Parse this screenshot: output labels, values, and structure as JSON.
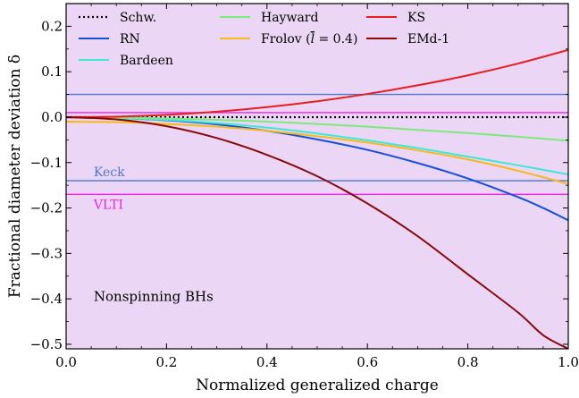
{
  "chart_data": {
    "type": "line",
    "xlabel": "Normalized generalized charge",
    "ylabel": "Fractional diameter deviation δ",
    "xlim": [
      0.0,
      1.0
    ],
    "ylim": [
      -0.51,
      0.25
    ],
    "xticks": [
      0.0,
      0.2,
      0.4,
      0.6,
      0.8,
      1.0
    ],
    "xtick_labels": [
      "0.0",
      "0.2",
      "0.4",
      "0.6",
      "0.8",
      "1.0"
    ],
    "yticks": [
      0.2,
      0.1,
      0.0,
      -0.1,
      -0.2,
      -0.3,
      -0.4,
      -0.5
    ],
    "ytick_labels": [
      "0.2",
      "0.1",
      "0.0",
      "−0.1",
      "−0.2",
      "−0.3",
      "−0.4",
      "−0.5"
    ],
    "grid": false,
    "legend_position": "top",
    "background_color": "#ecd6f6",
    "annotation": "Nonspinning BHs",
    "series": [
      {
        "name": "Schw.",
        "color": "#000000",
        "dash": "dotted",
        "x": [
          0.0,
          1.0
        ],
        "y": [
          0.0,
          0.0
        ]
      },
      {
        "name": "RN",
        "color": "#1550d9",
        "x": [
          0.0,
          0.1,
          0.2,
          0.3,
          0.4,
          0.5,
          0.6,
          0.7,
          0.8,
          0.9,
          0.95,
          1.0
        ],
        "y": [
          0.0,
          -0.002,
          -0.007,
          -0.016,
          -0.03,
          -0.049,
          -0.072,
          -0.101,
          -0.135,
          -0.176,
          -0.2,
          -0.227
        ]
      },
      {
        "name": "Bardeen",
        "color": "#3de8d4",
        "x": [
          0.0,
          0.1,
          0.2,
          0.3,
          0.4,
          0.5,
          0.6,
          0.7,
          0.8,
          0.9,
          1.0
        ],
        "y": [
          0.0,
          -0.002,
          -0.006,
          -0.013,
          -0.023,
          -0.036,
          -0.051,
          -0.068,
          -0.087,
          -0.106,
          -0.126
        ]
      },
      {
        "name": "Hayward",
        "color": "#7cea7a",
        "x": [
          0.0,
          0.1,
          0.2,
          0.3,
          0.4,
          0.5,
          0.6,
          0.7,
          0.8,
          0.9,
          1.0
        ],
        "y": [
          0.0,
          -0.001,
          -0.003,
          -0.006,
          -0.01,
          -0.015,
          -0.021,
          -0.028,
          -0.035,
          -0.043,
          -0.052
        ]
      },
      {
        "name": "Frolov ($\\bar{l}=0.4$)",
        "legend_parts": [
          "Frolov (",
          "l",
          " = 0.4)"
        ],
        "color": "#f5b919",
        "x": [
          0.0,
          0.1,
          0.2,
          0.3,
          0.4,
          0.5,
          0.6,
          0.7,
          0.8,
          0.9,
          1.0
        ],
        "y": [
          -0.01,
          -0.011,
          -0.015,
          -0.021,
          -0.03,
          -0.042,
          -0.056,
          -0.073,
          -0.093,
          -0.118,
          -0.147
        ]
      },
      {
        "name": "KS",
        "color": "#e81e1e",
        "x": [
          0.0,
          0.1,
          0.2,
          0.3,
          0.4,
          0.5,
          0.6,
          0.7,
          0.8,
          0.9,
          1.0
        ],
        "y": [
          0.0,
          0.001,
          0.005,
          0.012,
          0.022,
          0.035,
          0.051,
          0.07,
          0.092,
          0.118,
          0.148
        ]
      },
      {
        "name": "EMd-1",
        "color": "#8a0a0a",
        "x": [
          0.0,
          0.1,
          0.2,
          0.3,
          0.4,
          0.5,
          0.6,
          0.7,
          0.8,
          0.9,
          0.95,
          1.0
        ],
        "y": [
          0.0,
          -0.005,
          -0.02,
          -0.046,
          -0.083,
          -0.13,
          -0.19,
          -0.262,
          -0.346,
          -0.43,
          -0.48,
          -0.51
        ]
      }
    ],
    "horizontal_lines": [
      {
        "y": 0.05,
        "color": "#4a78d0",
        "label": ""
      },
      {
        "y": 0.01,
        "color": "#ee22ee",
        "label": ""
      },
      {
        "y": -0.14,
        "color": "#4a78d0",
        "label": "Keck"
      },
      {
        "y": -0.17,
        "color": "#ee22ee",
        "label": "VLTI"
      }
    ]
  }
}
